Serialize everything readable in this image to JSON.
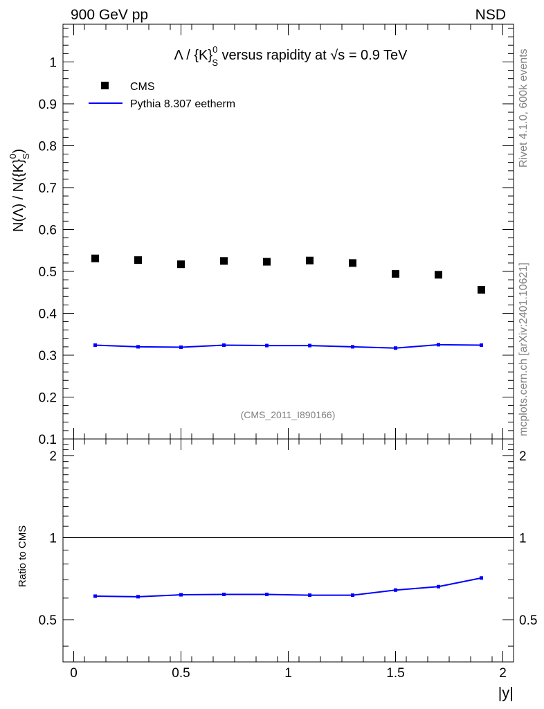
{
  "header": {
    "left": "900 GeV pp",
    "right": "NSD"
  },
  "side": {
    "rivet": "Rivet 4.1.0,  600k events",
    "mcplots": "mcplots.cern.ch [arXiv:2401.10621]"
  },
  "analysis_id": "(CMS_2011_I890166)",
  "chart_data": [
    {
      "type": "scatter",
      "title_parts": {
        "pre": "Λ / {K}",
        "sup": "0",
        "sub": "S",
        "mid": " versus rapidity at ",
        "sqrt": "√s",
        "post": " = 0.9 TeV"
      },
      "ylabel_parts": {
        "pre": "N(Λ)  /  N({K}",
        "sup": "0",
        "sub": "S",
        "post": ")"
      },
      "xlabel": "|y|",
      "xlim": [
        -0.05,
        2.05
      ],
      "ylim": [
        0.1,
        1.09
      ],
      "x_ticks": [
        0,
        0.5,
        1,
        1.5,
        2
      ],
      "x_tick_labels": [
        "0",
        "0.5",
        "1",
        "1.5",
        "2"
      ],
      "y_ticks": [
        0.1,
        0.2,
        0.3,
        0.4,
        0.5,
        0.6,
        0.7,
        0.8,
        0.9,
        1
      ],
      "y_tick_labels": [
        "0.1",
        "0.2",
        "0.3",
        "0.4",
        "0.5",
        "0.6",
        "0.7",
        "0.8",
        "0.9",
        "1"
      ],
      "legend": [
        "CMS",
        "Pythia 8.307 eetherm"
      ],
      "legend_position": "top-left",
      "series": [
        {
          "name": "CMS",
          "style": "markers",
          "color": "#000000",
          "x": [
            0.1,
            0.3,
            0.5,
            0.7,
            0.9,
            1.1,
            1.3,
            1.5,
            1.7,
            1.9
          ],
          "y": [
            0.531,
            0.527,
            0.517,
            0.525,
            0.523,
            0.526,
            0.52,
            0.494,
            0.492,
            0.456
          ]
        },
        {
          "name": "Pythia 8.307 eetherm",
          "style": "line",
          "color": "#0000ff",
          "x": [
            0.1,
            0.3,
            0.5,
            0.7,
            0.9,
            1.1,
            1.3,
            1.5,
            1.7,
            1.9
          ],
          "y": [
            0.324,
            0.32,
            0.319,
            0.324,
            0.323,
            0.323,
            0.32,
            0.317,
            0.325,
            0.324
          ]
        }
      ]
    },
    {
      "type": "line",
      "ylabel": "Ratio to CMS",
      "xlabel": "|y|",
      "xlim": [
        -0.05,
        2.05
      ],
      "ylim": [
        0.35,
        2.3
      ],
      "log_y": true,
      "y_tick_labels": [
        "0.5",
        "1",
        "2"
      ],
      "y_ticks": [
        0.5,
        1,
        2
      ],
      "reference_line": 1,
      "series": [
        {
          "name": "Pythia 8.307 eetherm / CMS",
          "color": "#0000ff",
          "x": [
            0.1,
            0.3,
            0.5,
            0.7,
            0.9,
            1.1,
            1.3,
            1.5,
            1.7,
            1.9
          ],
          "y": [
            0.61,
            0.607,
            0.617,
            0.619,
            0.619,
            0.615,
            0.615,
            0.642,
            0.661,
            0.711
          ]
        }
      ]
    }
  ]
}
